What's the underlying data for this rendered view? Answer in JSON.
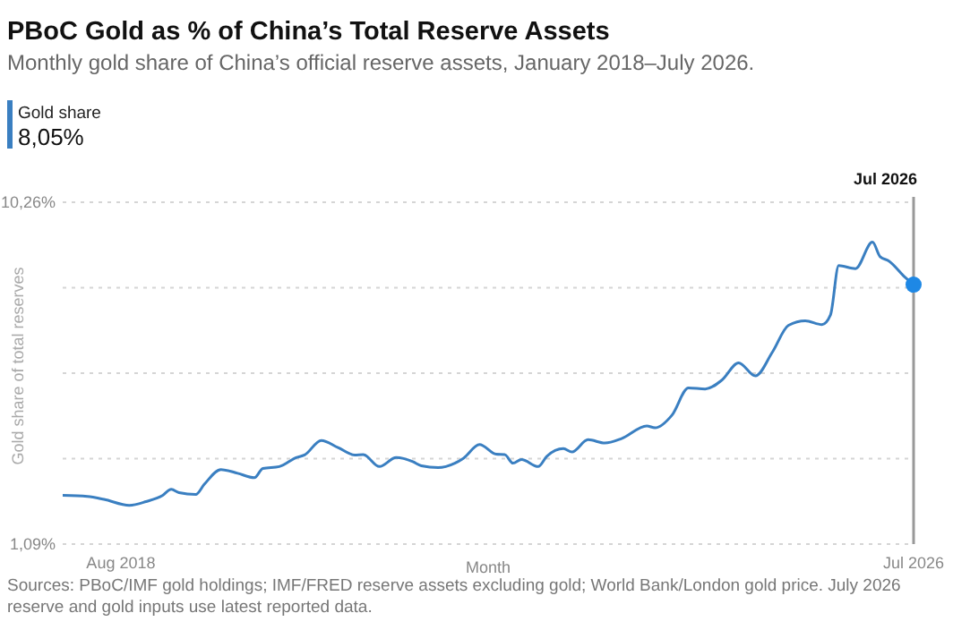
{
  "chart_data": {
    "type": "line",
    "title": "PBoC Gold as % of China’s Total Reserve Assets",
    "subtitle": "Monthly gold share of China’s official reserve assets, January 2018–July 2026.",
    "xlabel": "Month",
    "ylabel": "Gold share of total reserves",
    "annotations": [
      "8,05%",
      "Sources: PBoC/IMF gold holdings; IMF/FRED reserve assets excluding gold; World Bank/London gold price. July 2026 reserve and gold inputs use latest reported data."
    ],
    "x": [
      "2018-01",
      "2018-04",
      "2018-06",
      "2018-09",
      "2018-11",
      "2019-01",
      "2019-02",
      "2019-03",
      "2019-05",
      "2019-06",
      "2019-08",
      "2019-10",
      "2019-12",
      "2020-01",
      "2020-03",
      "2020-05",
      "2020-06",
      "2020-08",
      "2020-10",
      "2020-12",
      "2021-01",
      "2021-03",
      "2021-05",
      "2021-07",
      "2021-08",
      "2021-10",
      "2021-12",
      "2022-01",
      "2022-03",
      "2022-05",
      "2022-06",
      "2022-07",
      "2022-08",
      "2022-10",
      "2022-11",
      "2023-01",
      "2023-02",
      "2023-04",
      "2023-06",
      "2023-08",
      "2023-11",
      "2023-12",
      "2024-02",
      "2024-04",
      "2024-06",
      "2024-08",
      "2024-10",
      "2024-12",
      "2025-02",
      "2025-04",
      "2025-06",
      "2025-08",
      "2025-09",
      "2025-10",
      "2025-12",
      "2026-02",
      "2026-03",
      "2026-04",
      "2026-06",
      "2026-07"
    ],
    "series": [
      {
        "name": "Gold share",
        "color": "#3a7fc1",
        "values": [
          2.4,
          2.37,
          2.29,
          2.13,
          2.23,
          2.4,
          2.56,
          2.47,
          2.42,
          2.69,
          3.09,
          2.99,
          2.87,
          3.12,
          3.17,
          3.41,
          3.48,
          3.87,
          3.68,
          3.48,
          3.49,
          3.17,
          3.41,
          3.3,
          3.19,
          3.14,
          3.26,
          3.39,
          3.76,
          3.5,
          3.49,
          3.26,
          3.36,
          3.17,
          3.44,
          3.65,
          3.56,
          3.89,
          3.8,
          3.92,
          4.26,
          4.21,
          4.55,
          5.28,
          5.25,
          5.49,
          5.95,
          5.6,
          6.24,
          6.96,
          7.08,
          6.98,
          7.24,
          8.56,
          8.48,
          9.19,
          8.8,
          8.69,
          8.24,
          8.05
        ]
      },
      {
        "type": "scatter",
        "color": "#1e88e5",
        "marker": "circle",
        "x": [
          "2026-07"
        ],
        "values": [
          8.05
        ]
      }
    ],
    "xlim": [
      "2018-01",
      "2026-07"
    ],
    "xticks": [
      {
        "value": "2018-08",
        "label": "Aug 2018"
      },
      {
        "value": "2026-07",
        "label": "Jul 2026"
      }
    ],
    "ylim": [
      1.09,
      10.26
    ],
    "yticks": [
      {
        "value": 1.09,
        "label": "1,09%"
      },
      {
        "value": 3.3825,
        "label": null
      },
      {
        "value": 5.675,
        "label": null
      },
      {
        "value": 7.9675,
        "label": null
      },
      {
        "value": 10.26,
        "label": "10,26%"
      }
    ],
    "grid": "y",
    "legend": "top left",
    "marker": "none",
    "line_style": "solid",
    "ref_lines": [
      {
        "axis": "x",
        "value": "2026-07",
        "label": "Jul 2026",
        "color": "#999999"
      }
    ]
  }
}
